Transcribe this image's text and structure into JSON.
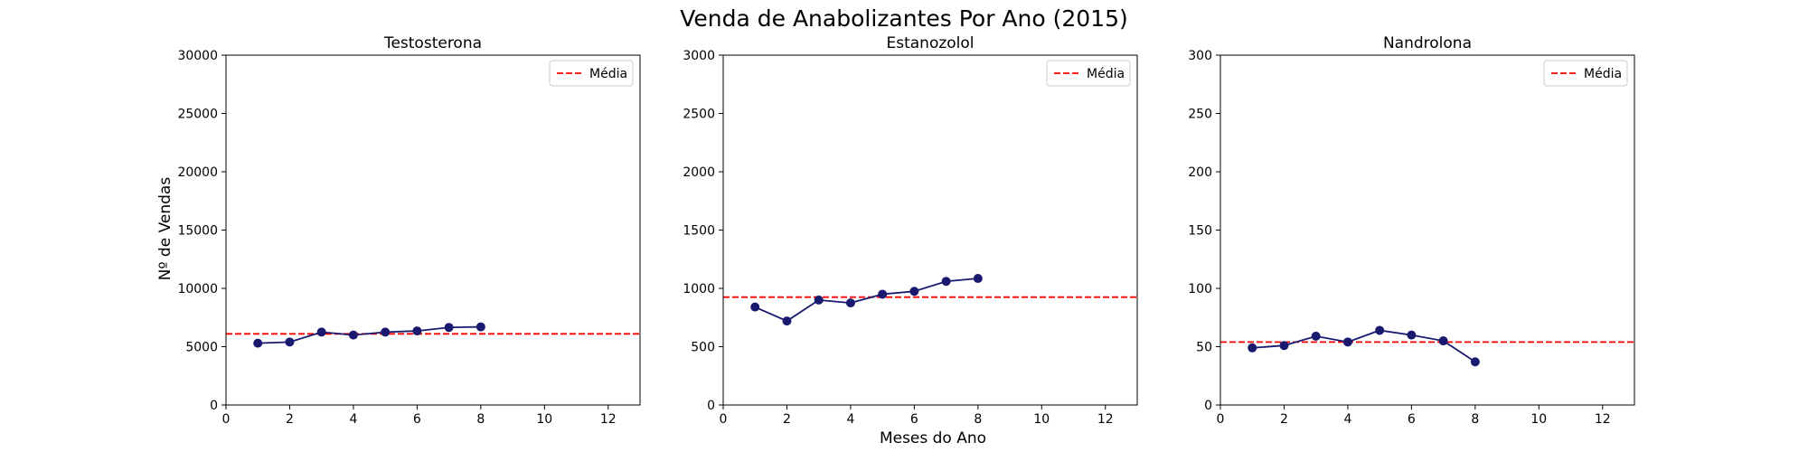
{
  "figure": {
    "title": "Venda de Anabolizantes Por Ano (2015)",
    "xlabel": "Meses do Ano",
    "ylabel": "Nº de Vendas"
  },
  "colors": {
    "series": "#191970",
    "mean": "#ff0000",
    "axes": "#000000"
  },
  "chart_data": [
    {
      "type": "line",
      "title": "Testosterona",
      "x": [
        1,
        2,
        3,
        4,
        5,
        6,
        7,
        8
      ],
      "values": [
        5300,
        5400,
        6250,
        6000,
        6250,
        6350,
        6650,
        6700
      ],
      "mean": 6100,
      "mean_label": "Média",
      "xlim": [
        0,
        13
      ],
      "ylim": [
        0,
        30000
      ],
      "xticks": [
        0,
        2,
        4,
        6,
        8,
        10,
        12
      ],
      "yticks": [
        0,
        5000,
        10000,
        15000,
        20000,
        25000,
        30000
      ],
      "legend": "top-right",
      "grid": false
    },
    {
      "type": "line",
      "title": "Estanozolol",
      "x": [
        1,
        2,
        3,
        4,
        5,
        6,
        7,
        8
      ],
      "values": [
        840,
        720,
        900,
        875,
        950,
        975,
        1060,
        1085
      ],
      "mean": 925,
      "mean_label": "Média",
      "xlim": [
        0,
        13
      ],
      "ylim": [
        0,
        3000
      ],
      "xticks": [
        0,
        2,
        4,
        6,
        8,
        10,
        12
      ],
      "yticks": [
        0,
        500,
        1000,
        1500,
        2000,
        2500,
        3000
      ],
      "legend": "top-right",
      "grid": false
    },
    {
      "type": "line",
      "title": "Nandrolona",
      "x": [
        1,
        2,
        3,
        4,
        5,
        6,
        7,
        8
      ],
      "values": [
        49,
        51,
        59,
        54,
        64,
        60,
        55,
        37
      ],
      "mean": 54,
      "mean_label": "Média",
      "xlim": [
        0,
        13
      ],
      "ylim": [
        0,
        300
      ],
      "xticks": [
        0,
        2,
        4,
        6,
        8,
        10,
        12
      ],
      "yticks": [
        0,
        50,
        100,
        150,
        200,
        250,
        300
      ],
      "legend": "top-right",
      "grid": false
    }
  ]
}
